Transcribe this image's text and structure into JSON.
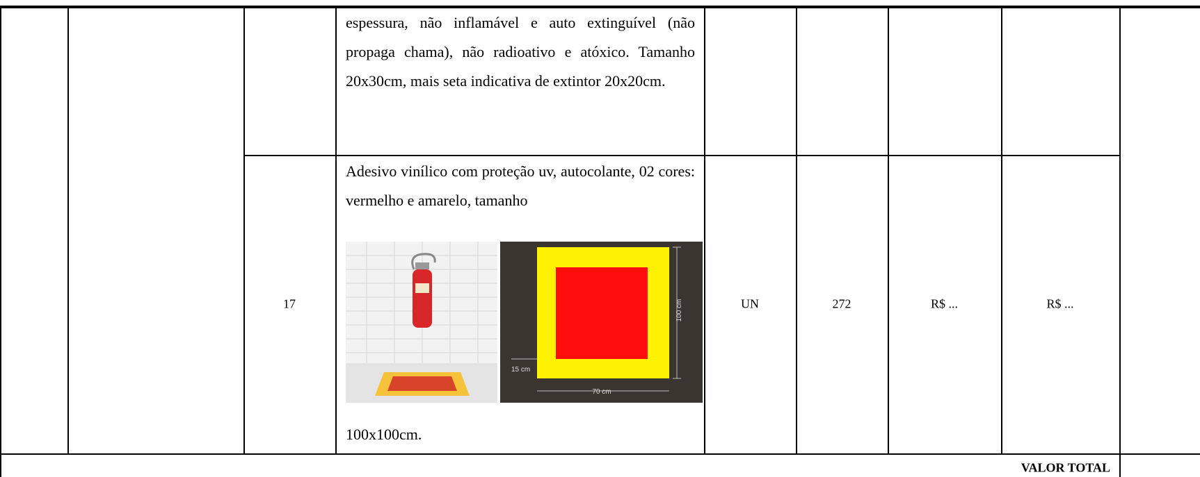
{
  "table": {
    "rows": [
      {
        "description": "espessura, não inflamável e auto extinguível (não propaga chama), não radioativo e atóxico. Tamanho 20x30cm, mais seta indicativa de extintor 20x20cm."
      },
      {
        "item": "17",
        "description_before": "Adesivo vinílico com proteção uv, autocolante, 02 cores: vermelho e amarelo, tamanho",
        "image_labels": [
          "100 cm",
          "15 cm",
          "70 cm"
        ],
        "description_after": "100x100cm.",
        "unit": "UN",
        "quantity": "272",
        "unit_price": "R$ ...",
        "total_price": "R$ ..."
      }
    ],
    "footer": "VALOR TOTAL"
  }
}
